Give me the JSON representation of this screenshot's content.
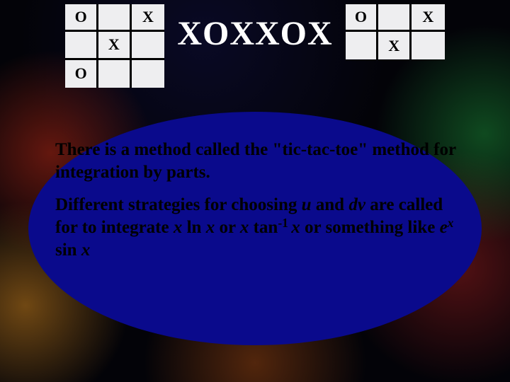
{
  "title": "XOXXOX",
  "ttt_left": {
    "rows": 3,
    "cols": 3,
    "cells": [
      "O",
      "",
      "X",
      "",
      "X",
      "",
      "O",
      "",
      ""
    ]
  },
  "ttt_right": {
    "rows": 2,
    "cols": 3,
    "cells": [
      "O",
      "",
      "X",
      "",
      "X",
      ""
    ]
  },
  "colors": {
    "bubble_bg": "#0a0a8c",
    "board_bg": "#eeeef0",
    "board_line": "#000000",
    "title_color": "#ffffff",
    "text_color": "#000000"
  },
  "para1": {
    "t1": "There is a method called the \"tic-tac-toe\" method for integration by parts."
  },
  "para2": {
    "t1": "Different strategies for choosing ",
    "u": "u",
    "t2": " and ",
    "dv": "dv",
    "t3": " are called for to integrate ",
    "x1": "x",
    "t4": " ln ",
    "x2": "x",
    "t5": " or ",
    "x3": "x",
    "t6": " tan",
    "exp1": "-1 ",
    "x4": "x",
    "t7": " or something like  ",
    "e": "e",
    "exp2": "x ",
    "t8": "sin ",
    "x5": "x"
  }
}
